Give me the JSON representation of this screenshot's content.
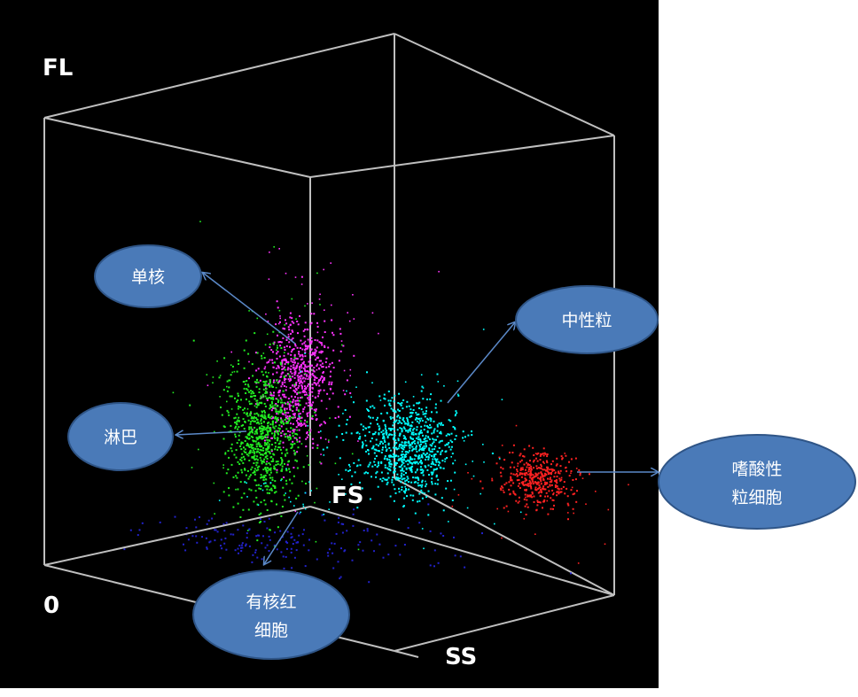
{
  "chart_data": {
    "type": "scatter",
    "projection": "3d-perspective",
    "title": "",
    "axes": {
      "x": "FS",
      "y": "SS",
      "z": "FL",
      "origin": "0"
    },
    "legend": "none",
    "grid": false,
    "background": "#000000",
    "box_color": "#bfbfbf",
    "clusters": [
      {
        "label": "单核",
        "color": "#ff33ff"
      },
      {
        "label": "淋巴",
        "color": "#22ee22"
      },
      {
        "label": "中性粒",
        "color": "#00ffff"
      },
      {
        "label": [
          "嗜酸性",
          "粒细胞"
        ],
        "color": "#ff2222"
      },
      {
        "label": [
          "有核红",
          "细胞"
        ],
        "color": "#2222cc"
      }
    ],
    "callout_style": {
      "fill": "#4a7ab8",
      "stroke": "#2f5587",
      "arrow_color": "#5b89c8"
    }
  }
}
